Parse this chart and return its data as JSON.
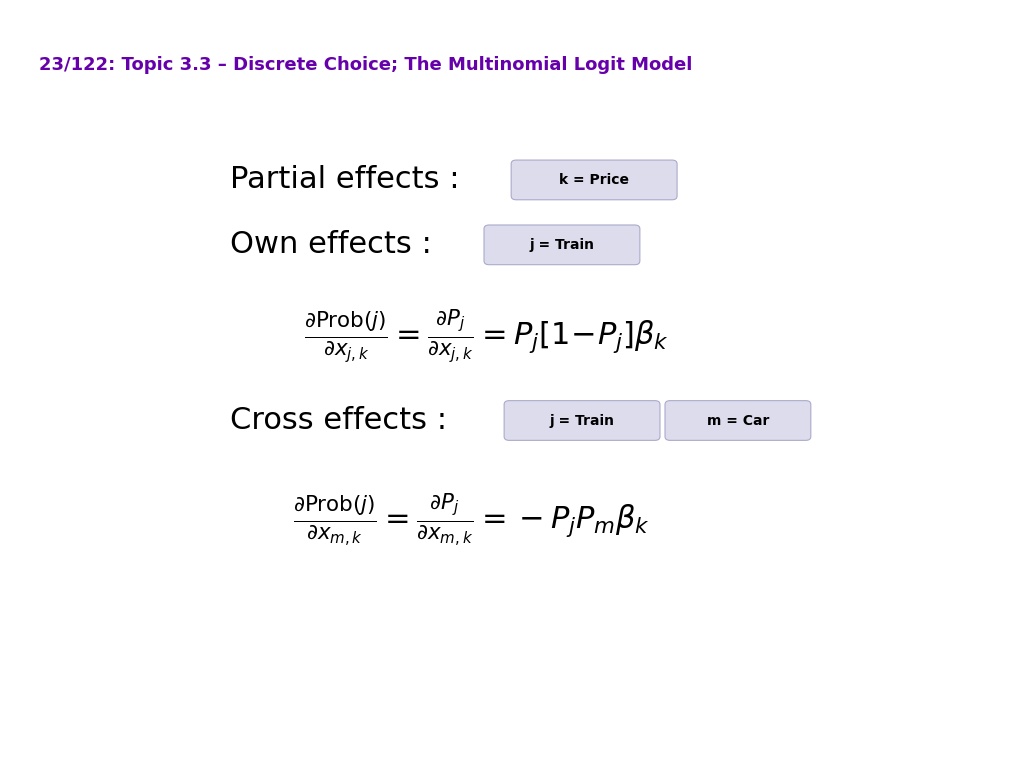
{
  "title": "23/122: Topic 3.3 – Discrete Choice; The Multinomial Logit Model",
  "title_color": "#6600aa",
  "title_fontsize": 13,
  "header_bar_color": "#6600aa",
  "header_bg_color": "#e8e8f0",
  "left_bar_color": "#4a0080",
  "bg_color": "#ffffff",
  "badge_bg": "#dcdcec",
  "badge_border": "#aaaacc",
  "partial_label": "Partial effects :",
  "own_label": "Own effects :",
  "cross_label": "Cross effects :",
  "badge_k": "k = Price",
  "badge_j": "j = Train",
  "badge_j2": "j = Train",
  "badge_m": "m = Car",
  "formula_own": "\\frac{\\partial\\mathrm{Prob}(j)}{\\partial x_{j,k}} = \\frac{\\partial P_j}{\\partial x_{j,k}} = P_j[1\\!-\\!P_j]\\beta_k",
  "formula_cross": "\\frac{\\partial\\mathrm{Prob}(j)}{\\partial x_{m,k}} = \\frac{\\partial P_j}{\\partial x_{m,k}} = -P_jP_m\\beta_k"
}
